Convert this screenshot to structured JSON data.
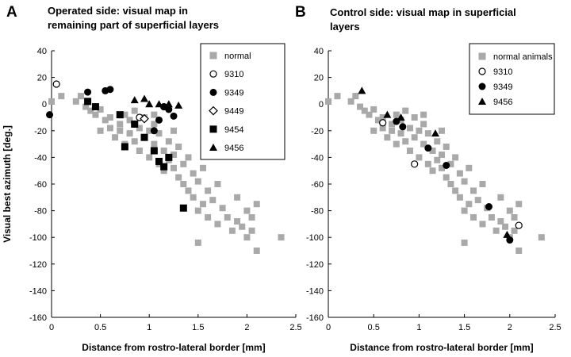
{
  "colors": {
    "normal": "#a9a9a9",
    "ink": "#000000"
  },
  "shared": {
    "xlabel": "Distance from rostro-lateral border [mm]",
    "ylabel": "Visual best azimuth [deg.]"
  },
  "chart_data": [
    {
      "type": "scatter",
      "panel_letter": "A",
      "title_lines": [
        "Operated side: visual map in",
        "remaining part of superficial layers"
      ],
      "xlabel": "Distance from rostro-lateral border [mm]",
      "ylabel": "Visual best azimuth [deg.]",
      "xlim": [
        0,
        2.5
      ],
      "ylim": [
        -160,
        40
      ],
      "xticks": [
        "0",
        "0.5",
        "1",
        "1.5",
        "2",
        "2.5"
      ],
      "xtick_values": [
        0,
        0.5,
        1,
        1.5,
        2,
        2.5
      ],
      "yticks": [
        "40",
        "20",
        "0",
        "-20",
        "-40",
        "-60",
        "-80",
        "-100",
        "-120",
        "-140",
        "-160"
      ],
      "ytick_values": [
        40,
        20,
        0,
        -20,
        -40,
        -60,
        -80,
        -100,
        -120,
        -140,
        -160
      ],
      "grid": false,
      "legend_position": "top-right",
      "series": [
        {
          "name": "normal",
          "marker": "gray-square",
          "points": [
            [
              0.0,
              2
            ],
            [
              0.1,
              6
            ],
            [
              0.25,
              2
            ],
            [
              0.3,
              6
            ],
            [
              0.35,
              -2
            ],
            [
              0.4,
              -5
            ],
            [
              0.45,
              -8
            ],
            [
              0.5,
              -4
            ],
            [
              0.55,
              -12
            ],
            [
              0.6,
              -18
            ],
            [
              0.6,
              -10
            ],
            [
              0.65,
              -25
            ],
            [
              0.7,
              -15
            ],
            [
              0.7,
              -20
            ],
            [
              0.75,
              -8
            ],
            [
              0.75,
              -30
            ],
            [
              0.8,
              -12
            ],
            [
              0.8,
              -22
            ],
            [
              0.85,
              -5
            ],
            [
              0.85,
              -28
            ],
            [
              0.9,
              -18
            ],
            [
              0.9,
              -35
            ],
            [
              0.95,
              -10
            ],
            [
              0.95,
              -25
            ],
            [
              1.0,
              -20
            ],
            [
              1.0,
              -40
            ],
            [
              1.05,
              -15
            ],
            [
              1.05,
              -30
            ],
            [
              1.1,
              -22
            ],
            [
              1.1,
              -45
            ],
            [
              1.15,
              -35
            ],
            [
              1.15,
              -50
            ],
            [
              1.2,
              -28
            ],
            [
              1.2,
              -42
            ],
            [
              1.25,
              -48
            ],
            [
              1.25,
              -38
            ],
            [
              1.3,
              -55
            ],
            [
              1.3,
              -32
            ],
            [
              1.35,
              -45
            ],
            [
              1.35,
              -60
            ],
            [
              1.4,
              -40
            ],
            [
              1.4,
              -65
            ],
            [
              1.45,
              -52
            ],
            [
              1.45,
              -70
            ],
            [
              1.5,
              -58
            ],
            [
              1.5,
              -80
            ],
            [
              1.55,
              -48
            ],
            [
              1.55,
              -75
            ],
            [
              1.6,
              -65
            ],
            [
              1.6,
              -85
            ],
            [
              1.65,
              -72
            ],
            [
              1.7,
              -60
            ],
            [
              1.7,
              -90
            ],
            [
              1.75,
              -78
            ],
            [
              1.8,
              -85
            ],
            [
              1.85,
              -95
            ],
            [
              1.9,
              -70
            ],
            [
              1.9,
              -88
            ],
            [
              1.95,
              -92
            ],
            [
              2.0,
              -80
            ],
            [
              2.0,
              -100
            ],
            [
              2.05,
              -85
            ],
            [
              2.05,
              -95
            ],
            [
              2.1,
              -75
            ],
            [
              2.1,
              -110
            ],
            [
              2.35,
              -100
            ],
            [
              1.5,
              -104
            ],
            [
              1.25,
              -20
            ],
            [
              1.05,
              -8
            ],
            [
              0.5,
              -20
            ]
          ]
        },
        {
          "name": "9310",
          "marker": "open-circle",
          "points": [
            [
              0.05,
              15
            ],
            [
              0.9,
              -10
            ],
            [
              1.15,
              -2
            ]
          ]
        },
        {
          "name": "9349",
          "marker": "filled-circle",
          "points": [
            [
              -0.02,
              -8
            ],
            [
              0.37,
              9
            ],
            [
              0.55,
              10
            ],
            [
              0.6,
              11
            ],
            [
              0.85,
              -15
            ],
            [
              1.05,
              -20
            ],
            [
              1.1,
              -12
            ],
            [
              1.15,
              -2
            ],
            [
              1.2,
              -4
            ],
            [
              1.25,
              -9
            ]
          ]
        },
        {
          "name": "9449",
          "marker": "open-diamond",
          "points": [
            [
              0.95,
              -11
            ]
          ]
        },
        {
          "name": "9454",
          "marker": "filled-square",
          "points": [
            [
              0.37,
              2
            ],
            [
              0.45,
              -2
            ],
            [
              0.7,
              -8
            ],
            [
              0.75,
              -32
            ],
            [
              0.85,
              -15
            ],
            [
              0.95,
              -25
            ],
            [
              1.05,
              -35
            ],
            [
              1.1,
              -43
            ],
            [
              1.15,
              -47
            ],
            [
              1.2,
              -40
            ],
            [
              1.35,
              -78
            ]
          ]
        },
        {
          "name": "9456",
          "marker": "filled-triangle",
          "points": [
            [
              0.85,
              3
            ],
            [
              0.95,
              4
            ],
            [
              1.0,
              0
            ],
            [
              1.1,
              0
            ],
            [
              1.2,
              0
            ],
            [
              1.3,
              -1
            ]
          ]
        }
      ]
    },
    {
      "type": "scatter",
      "panel_letter": "B",
      "title_lines": [
        "Control side: visual map in superficial",
        "layers"
      ],
      "xlabel": "Distance from rostro-lateral border [mm]",
      "ylabel": "",
      "xlim": [
        0,
        2.5
      ],
      "ylim": [
        -160,
        40
      ],
      "xticks": [
        "0",
        "0.5",
        "1",
        "1.5",
        "2",
        "2.5"
      ],
      "xtick_values": [
        0,
        0.5,
        1,
        1.5,
        2,
        2.5
      ],
      "yticks": [
        "40",
        "20",
        "0",
        "-20",
        "-40",
        "-60",
        "-80",
        "-100",
        "-120",
        "-140",
        "-160"
      ],
      "ytick_values": [
        40,
        20,
        0,
        -20,
        -40,
        -60,
        -80,
        -100,
        -120,
        -140,
        -160
      ],
      "grid": false,
      "legend_position": "top-right",
      "series": [
        {
          "name": "normal animals",
          "marker": "gray-square",
          "points": [
            [
              0.0,
              2
            ],
            [
              0.1,
              6
            ],
            [
              0.25,
              2
            ],
            [
              0.3,
              6
            ],
            [
              0.35,
              -2
            ],
            [
              0.4,
              -5
            ],
            [
              0.45,
              -8
            ],
            [
              0.5,
              -4
            ],
            [
              0.55,
              -12
            ],
            [
              0.6,
              -18
            ],
            [
              0.6,
              -10
            ],
            [
              0.65,
              -25
            ],
            [
              0.7,
              -15
            ],
            [
              0.7,
              -20
            ],
            [
              0.75,
              -8
            ],
            [
              0.75,
              -30
            ],
            [
              0.8,
              -12
            ],
            [
              0.8,
              -22
            ],
            [
              0.85,
              -5
            ],
            [
              0.85,
              -28
            ],
            [
              0.9,
              -18
            ],
            [
              0.9,
              -35
            ],
            [
              0.95,
              -10
            ],
            [
              0.95,
              -25
            ],
            [
              1.0,
              -20
            ],
            [
              1.0,
              -40
            ],
            [
              1.05,
              -15
            ],
            [
              1.05,
              -30
            ],
            [
              1.1,
              -22
            ],
            [
              1.1,
              -45
            ],
            [
              1.15,
              -35
            ],
            [
              1.15,
              -50
            ],
            [
              1.2,
              -28
            ],
            [
              1.2,
              -42
            ],
            [
              1.25,
              -48
            ],
            [
              1.25,
              -38
            ],
            [
              1.3,
              -55
            ],
            [
              1.3,
              -32
            ],
            [
              1.35,
              -45
            ],
            [
              1.35,
              -60
            ],
            [
              1.4,
              -40
            ],
            [
              1.4,
              -65
            ],
            [
              1.45,
              -52
            ],
            [
              1.45,
              -70
            ],
            [
              1.5,
              -58
            ],
            [
              1.5,
              -80
            ],
            [
              1.55,
              -48
            ],
            [
              1.55,
              -75
            ],
            [
              1.6,
              -65
            ],
            [
              1.6,
              -85
            ],
            [
              1.65,
              -72
            ],
            [
              1.7,
              -60
            ],
            [
              1.7,
              -90
            ],
            [
              1.75,
              -78
            ],
            [
              1.8,
              -85
            ],
            [
              1.85,
              -95
            ],
            [
              1.9,
              -70
            ],
            [
              1.9,
              -88
            ],
            [
              1.95,
              -92
            ],
            [
              2.0,
              -80
            ],
            [
              2.0,
              -100
            ],
            [
              2.05,
              -85
            ],
            [
              2.05,
              -95
            ],
            [
              2.1,
              -75
            ],
            [
              2.1,
              -110
            ],
            [
              2.35,
              -100
            ],
            [
              1.5,
              -104
            ],
            [
              1.25,
              -20
            ],
            [
              1.05,
              -8
            ],
            [
              0.5,
              -20
            ]
          ]
        },
        {
          "name": "9310",
          "marker": "open-circle",
          "points": [
            [
              0.6,
              -14
            ],
            [
              0.95,
              -45
            ],
            [
              2.1,
              -91
            ]
          ]
        },
        {
          "name": "9349",
          "marker": "filled-circle",
          "points": [
            [
              0.75,
              -13
            ],
            [
              0.82,
              -17
            ],
            [
              1.1,
              -33
            ],
            [
              1.3,
              -46
            ],
            [
              1.77,
              -77
            ],
            [
              2.0,
              -102
            ]
          ]
        },
        {
          "name": "9456",
          "marker": "filled-triangle",
          "points": [
            [
              0.37,
              10
            ],
            [
              0.65,
              -8
            ],
            [
              0.8,
              -10
            ],
            [
              1.18,
              -22
            ],
            [
              1.97,
              -98
            ]
          ]
        }
      ]
    }
  ]
}
